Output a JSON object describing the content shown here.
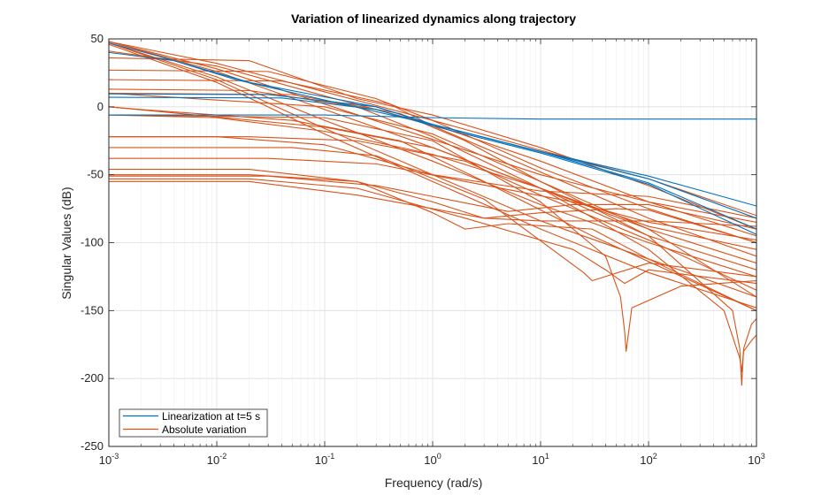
{
  "chart_data": {
    "type": "line",
    "title": "Variation of linearized dynamics along trajectory",
    "xlabel": "Frequency (rad/s)",
    "ylabel": "Singular Values (dB)",
    "xscale": "log",
    "xlim": [
      0.001,
      1000
    ],
    "ylim": [
      -250,
      50
    ],
    "grid": true,
    "minor_grid_x": true,
    "x_ticks": [
      {
        "value": 0.001,
        "base": "10",
        "exp": "-3"
      },
      {
        "value": 0.01,
        "base": "10",
        "exp": "-2"
      },
      {
        "value": 0.1,
        "base": "10",
        "exp": "-1"
      },
      {
        "value": 1,
        "base": "10",
        "exp": "0"
      },
      {
        "value": 10,
        "base": "10",
        "exp": "1"
      },
      {
        "value": 100,
        "base": "10",
        "exp": "2"
      },
      {
        "value": 1000,
        "base": "10",
        "exp": "3"
      }
    ],
    "y_ticks": [
      {
        "value": 50,
        "label": "50"
      },
      {
        "value": 0,
        "label": "0"
      },
      {
        "value": -50,
        "label": "-50"
      },
      {
        "value": -100,
        "label": "-100"
      },
      {
        "value": -150,
        "label": "-150"
      },
      {
        "value": -200,
        "label": "-200"
      },
      {
        "value": -250,
        "label": "-250"
      }
    ],
    "legend": {
      "location": "bottom-left",
      "entries": [
        {
          "name": "Linearization at t=5 s",
          "color": "#0072BD"
        },
        {
          "name": "Absolute variation",
          "color": "#D95319"
        }
      ]
    },
    "series": [
      {
        "group": "Linearization at t=5 s",
        "color": "#0072BD",
        "x": [
          0.001,
          0.004,
          0.015,
          0.1,
          1,
          10,
          100,
          1000
        ],
        "y": [
          40,
          34,
          20,
          5,
          -13,
          -33,
          -51,
          -73
        ]
      },
      {
        "group": "Linearization at t=5 s",
        "color": "#0072BD",
        "x": [
          0.001,
          0.003,
          0.02,
          0.3,
          1,
          10,
          100,
          1000
        ],
        "y": [
          47,
          37,
          18,
          0,
          -13,
          -33,
          -53,
          -82
        ]
      },
      {
        "group": "Linearization at t=5 s",
        "color": "#0072BD",
        "x": [
          0.001,
          0.03,
          0.3,
          1,
          10,
          100,
          1000
        ],
        "y": [
          9.5,
          9,
          0,
          -13,
          -33,
          -56,
          -90
        ]
      },
      {
        "group": "Linearization at t=5 s",
        "color": "#0072BD",
        "x": [
          0.001,
          0.04,
          0.3,
          1,
          10,
          100,
          1000
        ],
        "y": [
          7,
          6.5,
          -2,
          -14,
          -34,
          -57,
          -94
        ]
      },
      {
        "group": "Linearization at t=5 s",
        "color": "#0072BD",
        "x": [
          0.001,
          0.1,
          1,
          10,
          1000
        ],
        "y": [
          -6,
          -6,
          -8,
          -9,
          -9
        ]
      },
      {
        "group": "Absolute variation",
        "color": "#D95319",
        "x": [
          0.001,
          0.01,
          0.1,
          1,
          10,
          100,
          1000
        ],
        "y": [
          48,
          32,
          11,
          -10,
          -32,
          -53,
          -80
        ]
      },
      {
        "group": "Absolute variation",
        "color": "#D95319",
        "x": [
          0.001,
          0.01,
          0.1,
          1,
          10,
          100,
          1000
        ],
        "y": [
          48,
          28,
          2,
          -24,
          -50,
          -70,
          -85
        ]
      },
      {
        "group": "Absolute variation",
        "color": "#D95319",
        "x": [
          0.001,
          0.01,
          0.1,
          1,
          10,
          100,
          1000
        ],
        "y": [
          48,
          26,
          -2,
          -30,
          -60,
          -88,
          -105
        ]
      },
      {
        "group": "Absolute variation",
        "color": "#D95319",
        "x": [
          0.001,
          0.01,
          0.1,
          1,
          10,
          100,
          1000
        ],
        "y": [
          47,
          22,
          -10,
          -40,
          -72,
          -100,
          -125
        ]
      },
      {
        "group": "Absolute variation",
        "color": "#D95319",
        "x": [
          0.001,
          0.01,
          0.1,
          1,
          10,
          100,
          1000
        ],
        "y": [
          47,
          20,
          -16,
          -50,
          -84,
          -112,
          -140
        ]
      },
      {
        "group": "Absolute variation",
        "color": "#D95319",
        "x": [
          0.001,
          0.01,
          0.1,
          1,
          10,
          100,
          1000
        ],
        "y": [
          46,
          18,
          -20,
          -55,
          -90,
          -122,
          -148
        ]
      },
      {
        "group": "Absolute variation",
        "color": "#D95319",
        "x": [
          0.001,
          0.01,
          0.1,
          1,
          10,
          100,
          1000
        ],
        "y": [
          41,
          30,
          8,
          -13,
          -40,
          -70,
          -95
        ]
      },
      {
        "group": "Absolute variation",
        "color": "#D95319",
        "x": [
          0.001,
          0.02,
          0.2,
          1,
          10,
          100,
          1000
        ],
        "y": [
          36,
          34,
          6,
          -6,
          -30,
          -58,
          -90
        ]
      },
      {
        "group": "Absolute variation",
        "color": "#D95319",
        "x": [
          0.001,
          0.03,
          0.3,
          1,
          10,
          100,
          1000
        ],
        "y": [
          27,
          26,
          6,
          -10,
          -45,
          -75,
          -100
        ]
      },
      {
        "group": "Absolute variation",
        "color": "#D95319",
        "x": [
          0.001,
          0.04,
          0.4,
          1,
          10,
          100,
          1000
        ],
        "y": [
          20,
          19,
          2,
          -14,
          -48,
          -82,
          -110
        ]
      },
      {
        "group": "Absolute variation",
        "color": "#D95319",
        "x": [
          0.001,
          0.02,
          0.2,
          1,
          10,
          100,
          1000
        ],
        "y": [
          13,
          12,
          0,
          -22,
          -60,
          -95,
          -120
        ]
      },
      {
        "group": "Absolute variation",
        "color": "#D95319",
        "x": [
          0.001,
          0.05,
          0.5,
          2,
          10,
          100,
          1000
        ],
        "y": [
          10,
          9,
          -5,
          -25,
          -55,
          -90,
          -115
        ]
      },
      {
        "group": "Absolute variation",
        "color": "#D95319",
        "x": [
          0.001,
          0.002,
          0.05,
          0.5,
          3,
          30,
          1000
        ],
        "y": [
          0,
          -2,
          -10,
          -25,
          -55,
          -95,
          -150
        ]
      },
      {
        "group": "Absolute variation",
        "color": "#D95319",
        "x": [
          0.001,
          0.01,
          0.1,
          1,
          10,
          100,
          1000
        ],
        "y": [
          -6,
          -8,
          -18,
          -35,
          -60,
          -90,
          -140
        ]
      },
      {
        "group": "Absolute variation",
        "color": "#D95319",
        "x": [
          0.001,
          0.02,
          0.2,
          2,
          10,
          100,
          1000
        ],
        "y": [
          -22,
          -22,
          -25,
          -40,
          -65,
          -98,
          -135
        ]
      },
      {
        "group": "Absolute variation",
        "color": "#D95319",
        "x": [
          0.001,
          0.01,
          0.1,
          1,
          10,
          100,
          1000
        ],
        "y": [
          -22,
          -22,
          -28,
          -50,
          -62,
          -66,
          -82
        ]
      },
      {
        "group": "Absolute variation",
        "color": "#D95319",
        "x": [
          0.001,
          0.03,
          0.3,
          2,
          20,
          100,
          1000
        ],
        "y": [
          -38,
          -38,
          -42,
          -55,
          -70,
          -85,
          -98
        ]
      },
      {
        "group": "Absolute variation",
        "color": "#D95319",
        "x": [
          0.001,
          0.02,
          0.2,
          1,
          2,
          5,
          30,
          100,
          1000
        ],
        "y": [
          -46,
          -46,
          -55,
          -78,
          -90,
          -86,
          -90,
          -112,
          -150
        ]
      },
      {
        "group": "Absolute variation",
        "color": "#D95319",
        "x": [
          0.001,
          0.02,
          0.2,
          1,
          3,
          10,
          50,
          100,
          1000
        ],
        "y": [
          -50,
          -50,
          -55,
          -70,
          -82,
          -78,
          -75,
          -76,
          -100
        ]
      },
      {
        "group": "Absolute variation",
        "color": "#D95319",
        "x": [
          0.001,
          0.03,
          0.3,
          1,
          5,
          20,
          100,
          1000
        ],
        "y": [
          -51,
          -51,
          -58,
          -66,
          -77,
          -72,
          -72,
          -90
        ]
      },
      {
        "group": "Absolute variation",
        "color": "#D95319",
        "x": [
          0.001,
          0.02,
          0.2,
          1,
          3,
          10,
          100,
          1000
        ],
        "y": [
          -55,
          -55,
          -65,
          -75,
          -82,
          -84,
          -84,
          -88
        ]
      },
      {
        "group": "Absolute variation",
        "color": "#D95319",
        "x": [
          0.001,
          0.02,
          0.2,
          2,
          20,
          40,
          60,
          100,
          1000
        ],
        "y": [
          -53,
          -53,
          -60,
          -82,
          -105,
          -120,
          -130,
          -120,
          -130
        ]
      },
      {
        "group": "Absolute variation",
        "color": "#D95319",
        "x": [
          0.001,
          0.05,
          0.3,
          3,
          25,
          30,
          100,
          1000
        ],
        "y": [
          -30,
          -30,
          -36,
          -68,
          -122,
          -128,
          -115,
          -125
        ]
      },
      {
        "group": "Absolute variation",
        "color": "#D95319",
        "x": [
          0.001,
          0.1,
          1,
          10,
          40,
          55,
          60,
          62,
          70,
          200,
          1000
        ],
        "y": [
          -6,
          -8,
          -25,
          -70,
          -110,
          -140,
          -165,
          -180,
          -148,
          -132,
          -128
        ]
      },
      {
        "group": "Absolute variation",
        "color": "#D95319",
        "x": [
          0.001,
          0.1,
          1,
          10,
          100,
          600,
          700,
          730,
          760,
          900,
          1000
        ],
        "y": [
          10,
          0,
          -20,
          -55,
          -95,
          -150,
          -178,
          -205,
          -178,
          -160,
          -156
        ]
      },
      {
        "group": "Absolute variation",
        "color": "#D95319",
        "x": [
          0.001,
          0.1,
          1,
          10,
          100,
          500,
          700,
          730,
          760,
          900,
          1000
        ],
        "y": [
          0,
          -15,
          -30,
          -60,
          -105,
          -150,
          -185,
          -195,
          -180,
          -172,
          -168
        ]
      }
    ]
  }
}
